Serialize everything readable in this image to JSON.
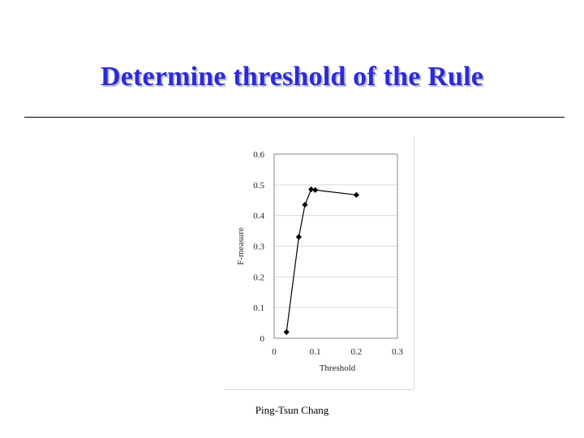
{
  "slide": {
    "title": "Determine threshold of the Rule",
    "footer": "Ping-Tsun Chang"
  },
  "colors": {
    "title": "#2b2bd6",
    "series": "#000000",
    "grid": "#d9d9d9",
    "axis": "#888888"
  },
  "chart_data": {
    "type": "line",
    "title": "",
    "xlabel": "Threshold",
    "ylabel": "F-measure",
    "xlim": [
      0,
      0.3
    ],
    "ylim": [
      0,
      0.6
    ],
    "x_ticks": [
      "0",
      "0.1",
      "0.2",
      "0.3"
    ],
    "y_ticks": [
      "0",
      "0.1",
      "0.2",
      "0.3",
      "0.4",
      "0.5",
      "0.6"
    ],
    "grid": "horizontal",
    "legend": "none",
    "markers": "diamond",
    "series": [
      {
        "x": [
          0.03,
          0.06,
          0.075,
          0.09,
          0.1,
          0.2
        ],
        "y": [
          0.02,
          0.33,
          0.435,
          0.485,
          0.483,
          0.467
        ]
      }
    ]
  }
}
